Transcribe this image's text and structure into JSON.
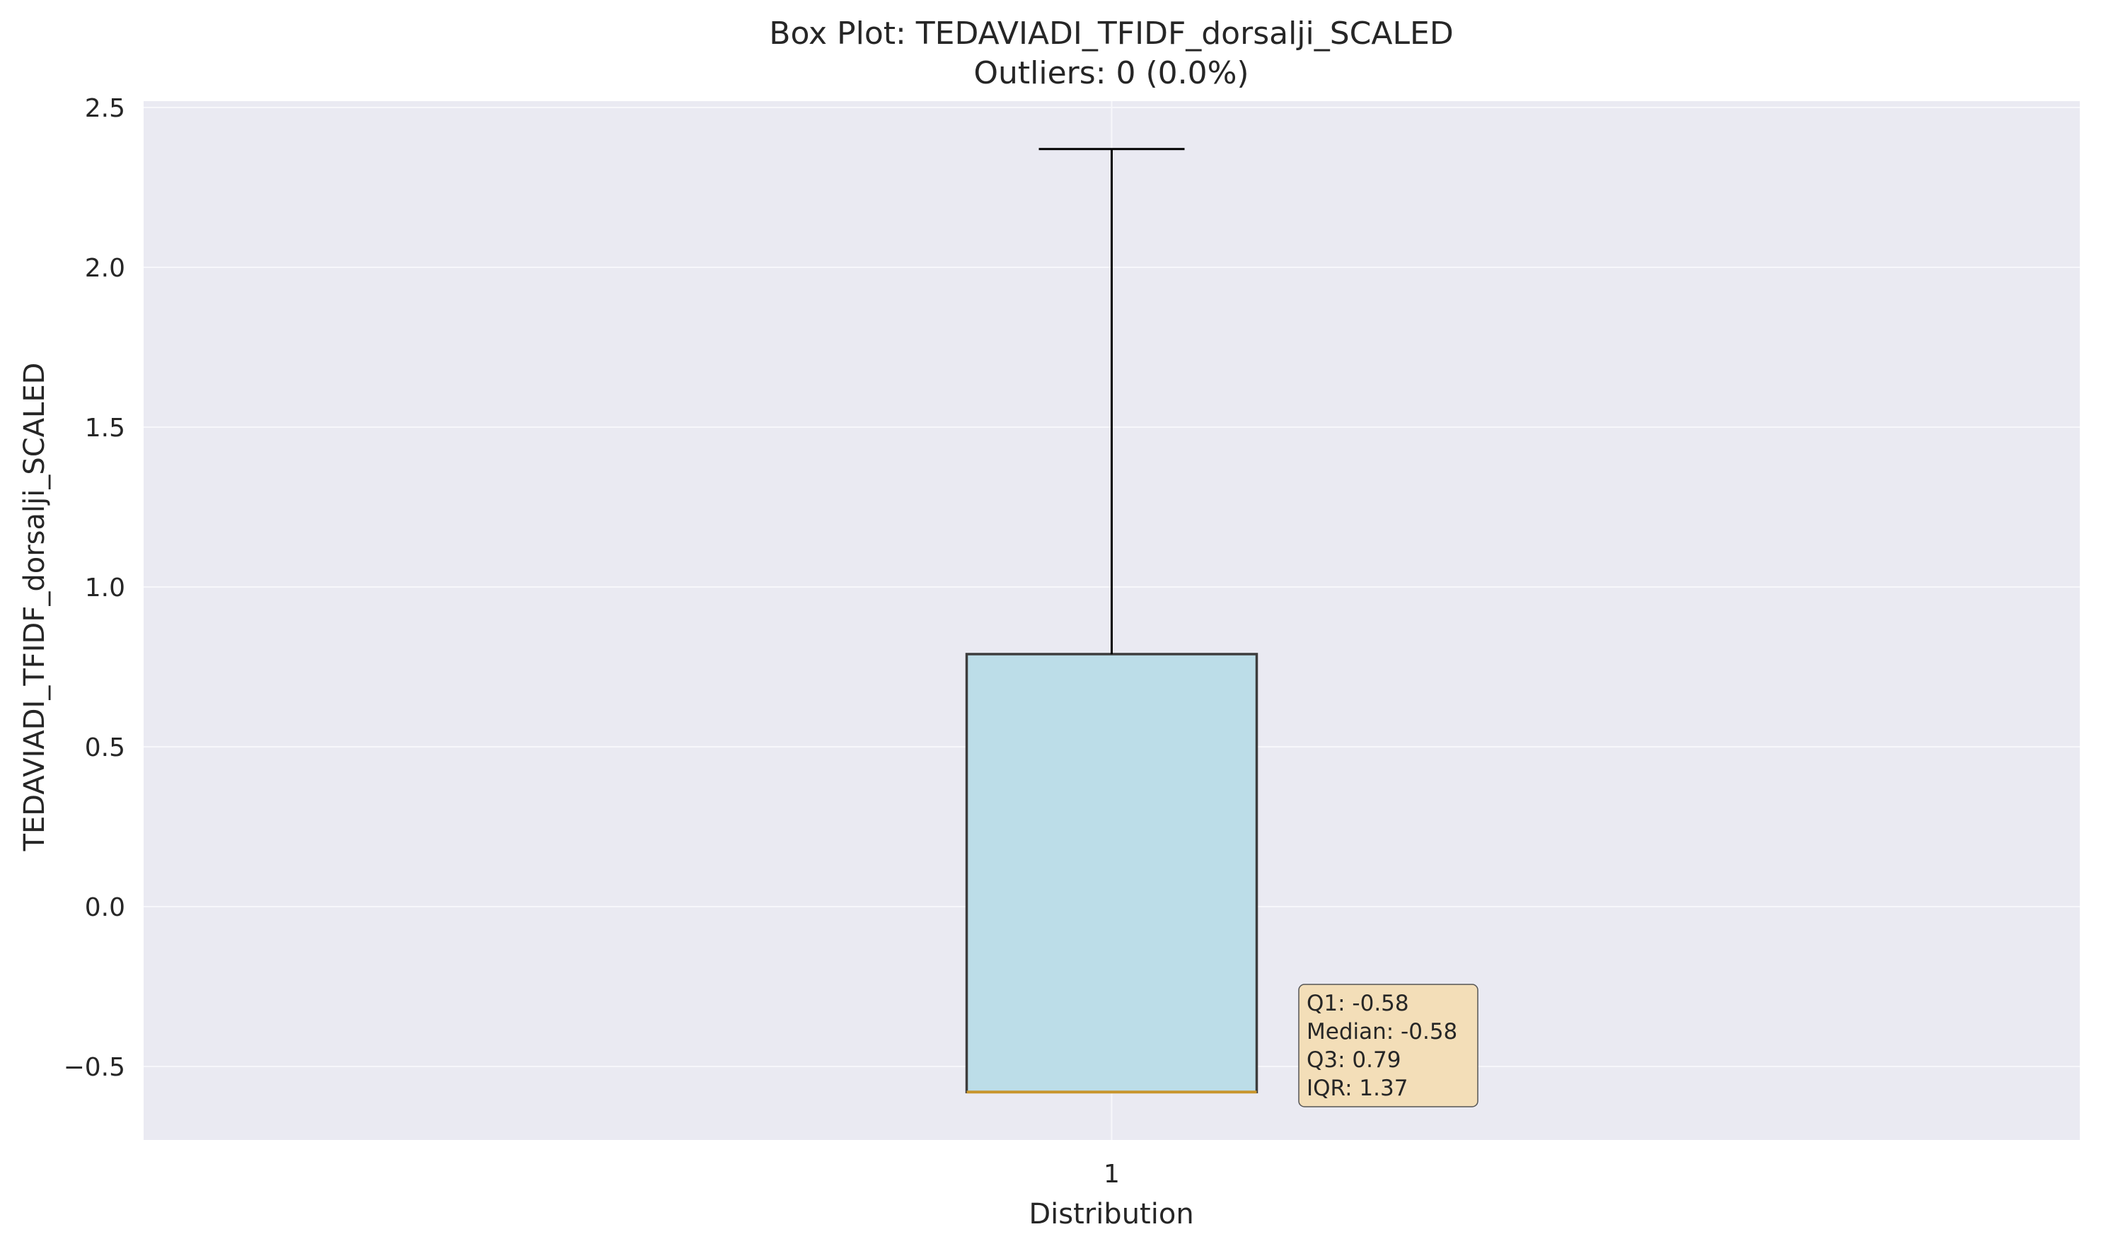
{
  "chart_data": {
    "type": "box",
    "title": "Box Plot: TEDAVIADI_TFIDF_dorsalji_SCALED",
    "subtitle": "Outliers: 0 (0.0%)",
    "xlabel": "Distribution",
    "ylabel": "TEDAVIADI_TFIDF_dorsalji_SCALED",
    "categories": [
      "1"
    ],
    "ylim": [
      -0.73,
      2.52
    ],
    "yticks": [
      -0.5,
      0.0,
      0.5,
      1.0,
      1.5,
      2.0,
      2.5
    ],
    "ytick_labels": [
      "−0.5",
      "0.0",
      "0.5",
      "1.0",
      "1.5",
      "2.0",
      "2.5"
    ],
    "xlim": [
      0.5,
      1.5
    ],
    "grid": true,
    "box": {
      "position": 1,
      "q1": -0.58,
      "median": -0.58,
      "q3": 0.79,
      "whisker_low": -0.58,
      "whisker_high": 2.37,
      "outliers": []
    },
    "annotation_lines": [
      "Q1: -0.58",
      "Median: -0.58",
      "Q3: 0.79",
      "IQR: 1.37"
    ],
    "colors": {
      "plot_background": "#eaeaf2",
      "grid": "#f7f7fb",
      "box_fill": "#bcdde8",
      "box_edge": "#3d3d3d",
      "median": "#c8962e",
      "whisker": "#000000",
      "annotation_fill": "#f3deb8",
      "annotation_edge": "#555555"
    }
  }
}
